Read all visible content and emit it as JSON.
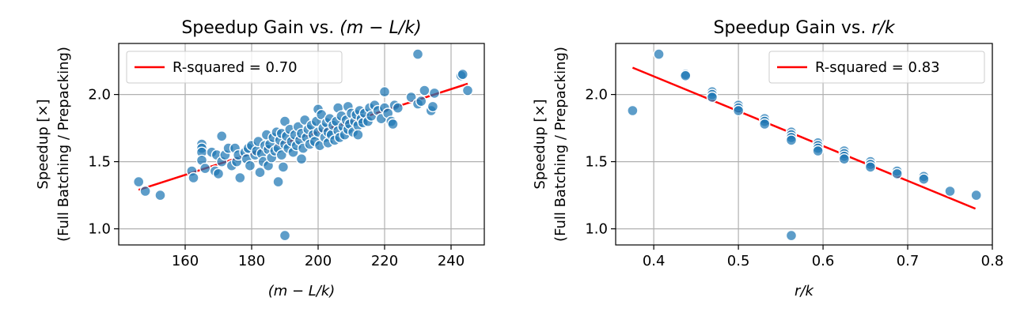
{
  "chart_data": [
    {
      "type": "scatter",
      "title": "Speedup Gain vs. (m − L/k)",
      "title_parts": {
        "prefix": "Speedup Gain vs. ",
        "math": "(m − L/k)"
      },
      "xlabel": "(m − L/k)",
      "ylabel_lines": [
        "Speedup [×]",
        "(Full Batching / Prepacking)"
      ],
      "xlim": [
        140,
        250
      ],
      "ylim": [
        0.88,
        2.38
      ],
      "xticks": [
        160,
        180,
        200,
        220,
        240
      ],
      "xtick_labels": [
        "160",
        "180",
        "200",
        "220",
        "240"
      ],
      "yticks": [
        1.0,
        1.5,
        2.0
      ],
      "ytick_labels": [
        "1.0",
        "1.5",
        "2.0"
      ],
      "grid": true,
      "legend": {
        "placement": "top-left",
        "label": "R-squared = 0.70"
      },
      "fit_line": {
        "x": [
          146,
          245
        ],
        "y": [
          1.29,
          2.08
        ],
        "color": "#ff0000"
      },
      "points_color": "#1f77b4",
      "points": [
        {
          "x": 146,
          "y": 1.35
        },
        {
          "x": 148,
          "y": 1.28
        },
        {
          "x": 152.5,
          "y": 1.25
        },
        {
          "x": 162,
          "y": 1.43
        },
        {
          "x": 162.5,
          "y": 1.38
        },
        {
          "x": 165,
          "y": 1.63
        },
        {
          "x": 165,
          "y": 1.6
        },
        {
          "x": 165,
          "y": 1.57
        },
        {
          "x": 165,
          "y": 1.51
        },
        {
          "x": 166,
          "y": 1.45
        },
        {
          "x": 168,
          "y": 1.57
        },
        {
          "x": 169,
          "y": 1.43
        },
        {
          "x": 169.5,
          "y": 1.55
        },
        {
          "x": 170,
          "y": 1.41
        },
        {
          "x": 171,
          "y": 1.69
        },
        {
          "x": 171,
          "y": 1.5
        },
        {
          "x": 172,
          "y": 1.55
        },
        {
          "x": 173,
          "y": 1.6
        },
        {
          "x": 174,
          "y": 1.47
        },
        {
          "x": 175,
          "y": 1.6
        },
        {
          "x": 175.5,
          "y": 1.5
        },
        {
          "x": 176,
          "y": 1.55
        },
        {
          "x": 176.5,
          "y": 1.38
        },
        {
          "x": 178,
          "y": 1.57
        },
        {
          "x": 178.5,
          "y": 1.52
        },
        {
          "x": 179,
          "y": 1.6
        },
        {
          "x": 179.5,
          "y": 1.47
        },
        {
          "x": 180,
          "y": 1.62
        },
        {
          "x": 181,
          "y": 1.55
        },
        {
          "x": 181.5,
          "y": 1.58
        },
        {
          "x": 182,
          "y": 1.65
        },
        {
          "x": 182.5,
          "y": 1.42
        },
        {
          "x": 183,
          "y": 1.56
        },
        {
          "x": 183.5,
          "y": 1.5
        },
        {
          "x": 184,
          "y": 1.62
        },
        {
          "x": 184.5,
          "y": 1.7
        },
        {
          "x": 185,
          "y": 1.59
        },
        {
          "x": 185,
          "y": 1.47
        },
        {
          "x": 185.5,
          "y": 1.63
        },
        {
          "x": 186,
          "y": 1.53
        },
        {
          "x": 186.5,
          "y": 1.68
        },
        {
          "x": 187,
          "y": 1.58
        },
        {
          "x": 187.5,
          "y": 1.72
        },
        {
          "x": 188,
          "y": 1.6
        },
        {
          "x": 188,
          "y": 1.35
        },
        {
          "x": 188.5,
          "y": 1.66
        },
        {
          "x": 189,
          "y": 1.71
        },
        {
          "x": 189,
          "y": 1.55
        },
        {
          "x": 189.5,
          "y": 1.46
        },
        {
          "x": 190,
          "y": 1.8
        },
        {
          "x": 190,
          "y": 1.63
        },
        {
          "x": 190,
          "y": 0.95
        },
        {
          "x": 190.5,
          "y": 1.69
        },
        {
          "x": 191,
          "y": 1.6
        },
        {
          "x": 191.5,
          "y": 1.74
        },
        {
          "x": 192,
          "y": 1.65
        },
        {
          "x": 192.5,
          "y": 1.57
        },
        {
          "x": 193,
          "y": 1.7
        },
        {
          "x": 193.5,
          "y": 1.62
        },
        {
          "x": 194,
          "y": 1.76
        },
        {
          "x": 194.5,
          "y": 1.66
        },
        {
          "x": 195,
          "y": 1.71
        },
        {
          "x": 195,
          "y": 1.52
        },
        {
          "x": 195.5,
          "y": 1.6
        },
        {
          "x": 196,
          "y": 1.81
        },
        {
          "x": 196.5,
          "y": 1.68
        },
        {
          "x": 197,
          "y": 1.74
        },
        {
          "x": 197.5,
          "y": 1.63
        },
        {
          "x": 198,
          "y": 1.77
        },
        {
          "x": 198.5,
          "y": 1.7
        },
        {
          "x": 199,
          "y": 1.65
        },
        {
          "x": 199.5,
          "y": 1.8
        },
        {
          "x": 200,
          "y": 1.89
        },
        {
          "x": 200,
          "y": 1.72
        },
        {
          "x": 200.5,
          "y": 1.62
        },
        {
          "x": 201,
          "y": 1.85
        },
        {
          "x": 201.5,
          "y": 1.75
        },
        {
          "x": 202,
          "y": 1.68
        },
        {
          "x": 202.5,
          "y": 1.79
        },
        {
          "x": 203,
          "y": 1.72
        },
        {
          "x": 203,
          "y": 1.64
        },
        {
          "x": 203.5,
          "y": 1.82
        },
        {
          "x": 204,
          "y": 1.7
        },
        {
          "x": 204.5,
          "y": 1.77
        },
        {
          "x": 205,
          "y": 1.66
        },
        {
          "x": 205.5,
          "y": 1.8
        },
        {
          "x": 206,
          "y": 1.9
        },
        {
          "x": 206,
          "y": 1.73
        },
        {
          "x": 206.5,
          "y": 1.68
        },
        {
          "x": 207,
          "y": 1.84
        },
        {
          "x": 207.5,
          "y": 1.76
        },
        {
          "x": 208,
          "y": 1.7
        },
        {
          "x": 208.5,
          "y": 1.81
        },
        {
          "x": 209,
          "y": 1.91
        },
        {
          "x": 209,
          "y": 1.74
        },
        {
          "x": 209.5,
          "y": 1.78
        },
        {
          "x": 210,
          "y": 1.86
        },
        {
          "x": 210.5,
          "y": 1.72
        },
        {
          "x": 211,
          "y": 1.8
        },
        {
          "x": 211.5,
          "y": 1.85
        },
        {
          "x": 212,
          "y": 1.77
        },
        {
          "x": 212,
          "y": 1.7
        },
        {
          "x": 212.5,
          "y": 1.88
        },
        {
          "x": 213,
          "y": 1.82
        },
        {
          "x": 213.5,
          "y": 1.79
        },
        {
          "x": 214,
          "y": 1.86
        },
        {
          "x": 215,
          "y": 1.8
        },
        {
          "x": 215.5,
          "y": 1.9
        },
        {
          "x": 216,
          "y": 1.84
        },
        {
          "x": 217,
          "y": 1.92
        },
        {
          "x": 218,
          "y": 1.88
        },
        {
          "x": 219,
          "y": 1.82
        },
        {
          "x": 220,
          "y": 2.02
        },
        {
          "x": 220,
          "y": 1.9
        },
        {
          "x": 221,
          "y": 1.86
        },
        {
          "x": 222,
          "y": 1.8
        },
        {
          "x": 222.5,
          "y": 1.78
        },
        {
          "x": 223,
          "y": 1.92
        },
        {
          "x": 224,
          "y": 1.9
        },
        {
          "x": 228,
          "y": 1.98
        },
        {
          "x": 230,
          "y": 2.3
        },
        {
          "x": 230,
          "y": 1.93
        },
        {
          "x": 231,
          "y": 1.95
        },
        {
          "x": 232,
          "y": 2.03
        },
        {
          "x": 234,
          "y": 1.88
        },
        {
          "x": 234.5,
          "y": 1.91
        },
        {
          "x": 235,
          "y": 2.01
        },
        {
          "x": 243,
          "y": 2.14
        },
        {
          "x": 243.5,
          "y": 2.15
        },
        {
          "x": 245,
          "y": 2.03
        }
      ]
    },
    {
      "type": "scatter",
      "title": "Speedup Gain vs. r/k",
      "title_parts": {
        "prefix": "Speedup Gain vs. ",
        "math": "r/k"
      },
      "xlabel": "r/k",
      "ylabel_lines": [
        "Speedup [×]",
        "(Full Batching / Prepacking)"
      ],
      "xlim": [
        0.355,
        0.8
      ],
      "ylim": [
        0.88,
        2.38
      ],
      "xticks": [
        0.4,
        0.5,
        0.6,
        0.7,
        0.8
      ],
      "xtick_labels": [
        "0.4",
        "0.5",
        "0.6",
        "0.7",
        "0.8"
      ],
      "yticks": [
        1.0,
        1.5,
        2.0
      ],
      "ytick_labels": [
        "1.0",
        "1.5",
        "2.0"
      ],
      "grid": true,
      "legend": {
        "placement": "top-right",
        "label": "R-squared = 0.83"
      },
      "fit_line": {
        "x": [
          0.375,
          0.78
        ],
        "y": [
          2.2,
          1.15
        ],
        "color": "#ff0000"
      },
      "points_color": "#1f77b4",
      "points": [
        {
          "x": 0.375,
          "y": 1.88
        },
        {
          "x": 0.406,
          "y": 2.3
        },
        {
          "x": 0.4375,
          "y": 2.15
        },
        {
          "x": 0.4375,
          "y": 2.14
        },
        {
          "x": 0.469,
          "y": 2.02
        },
        {
          "x": 0.469,
          "y": 2.0
        },
        {
          "x": 0.469,
          "y": 1.98
        },
        {
          "x": 0.5,
          "y": 1.92
        },
        {
          "x": 0.5,
          "y": 1.9
        },
        {
          "x": 0.5,
          "y": 1.88
        },
        {
          "x": 0.531,
          "y": 1.82
        },
        {
          "x": 0.531,
          "y": 1.8
        },
        {
          "x": 0.531,
          "y": 1.78
        },
        {
          "x": 0.5625,
          "y": 1.72
        },
        {
          "x": 0.5625,
          "y": 1.7
        },
        {
          "x": 0.5625,
          "y": 1.68
        },
        {
          "x": 0.5625,
          "y": 1.66
        },
        {
          "x": 0.5625,
          "y": 0.95
        },
        {
          "x": 0.594,
          "y": 1.64
        },
        {
          "x": 0.594,
          "y": 1.62
        },
        {
          "x": 0.594,
          "y": 1.6
        },
        {
          "x": 0.594,
          "y": 1.58
        },
        {
          "x": 0.625,
          "y": 1.58
        },
        {
          "x": 0.625,
          "y": 1.56
        },
        {
          "x": 0.625,
          "y": 1.54
        },
        {
          "x": 0.625,
          "y": 1.52
        },
        {
          "x": 0.656,
          "y": 1.5
        },
        {
          "x": 0.656,
          "y": 1.48
        },
        {
          "x": 0.656,
          "y": 1.46
        },
        {
          "x": 0.6875,
          "y": 1.43
        },
        {
          "x": 0.6875,
          "y": 1.41
        },
        {
          "x": 0.719,
          "y": 1.39
        },
        {
          "x": 0.719,
          "y": 1.37
        },
        {
          "x": 0.75,
          "y": 1.28
        },
        {
          "x": 0.781,
          "y": 1.25
        }
      ]
    }
  ]
}
